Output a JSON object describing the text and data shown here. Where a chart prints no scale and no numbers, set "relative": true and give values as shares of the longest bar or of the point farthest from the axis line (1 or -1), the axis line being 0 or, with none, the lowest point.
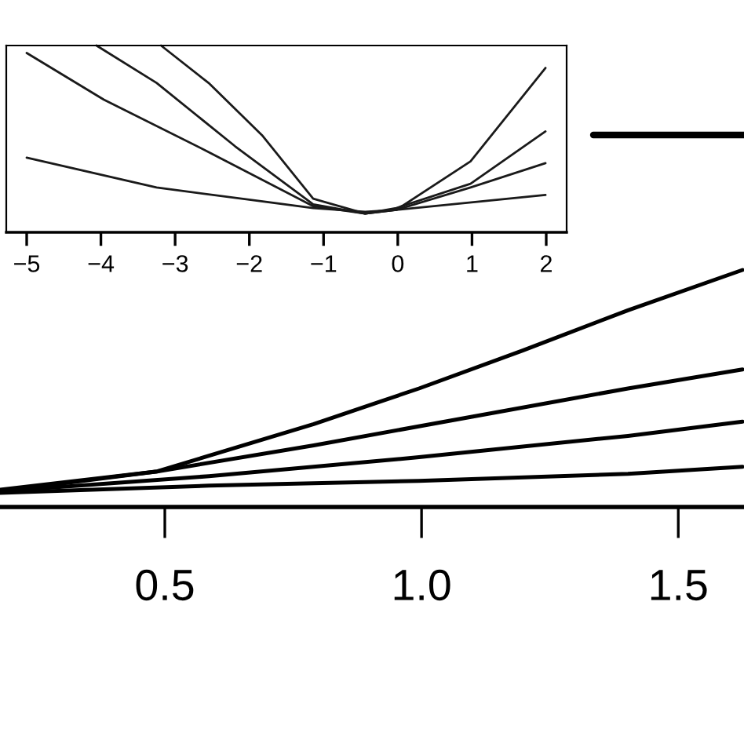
{
  "chart_data": [
    {
      "type": "line",
      "relative": true,
      "xlim": [
        -5.275,
        2.275
      ],
      "xticks": [
        {
          "value": -5,
          "label": "−5"
        },
        {
          "value": -4,
          "label": "−4"
        },
        {
          "value": -3,
          "label": "−3"
        },
        {
          "value": -2,
          "label": "−2"
        },
        {
          "value": -1,
          "label": "−1"
        },
        0,
        1,
        2
      ],
      "tick_labels": "x",
      "series": [
        {
          "color": "#1a1a1a",
          "x": [
            -5,
            -3.25,
            -1.14,
            -0.44,
            -0.02,
            1.99
          ],
          "values": [
            0.4,
            0.24,
            0.13,
            0.11,
            0.12,
            0.2
          ]
        },
        {
          "color": "#1a1a1a",
          "x": [
            -5,
            -3.96,
            -2.55,
            -1.14,
            -0.44,
            -0.02,
            0.98,
            1.99
          ],
          "values": [
            0.96,
            0.71,
            0.43,
            0.14,
            0.1,
            0.12,
            0.24,
            0.37
          ]
        },
        {
          "color": "#1a1a1a",
          "x": [
            -4.06,
            -3.25,
            -2.19,
            -1.14,
            -0.44,
            -0.02,
            0.98,
            1.99
          ],
          "values": [
            1.0,
            0.8,
            0.46,
            0.15,
            0.1,
            0.13,
            0.26,
            0.54
          ]
        },
        {
          "color": "#1a1a1a",
          "x": [
            -3.19,
            -2.55,
            -1.83,
            -1.14,
            -0.44,
            -0.02,
            0.98,
            1.99
          ],
          "values": [
            1.0,
            0.8,
            0.52,
            0.18,
            0.1,
            0.12,
            0.38,
            0.88
          ]
        }
      ]
    },
    {
      "type": "line",
      "relative": true,
      "xlim": [
        0.179,
        1.628
      ],
      "xticks": [
        0.5,
        {
          "value": 1.0,
          "label": "1.0"
        },
        1.5
      ],
      "tick_labels": "x",
      "series": [
        {
          "color": "#000000",
          "x": [
            0.179,
            0.485,
            0.79,
            0.995,
            1.197,
            1.402,
            1.625
          ],
          "values": [
            0.066,
            0.15,
            0.35,
            0.5,
            0.66,
            0.83,
            1.0
          ]
        },
        {
          "color": "#000000",
          "x": [
            0.179,
            0.485,
            0.79,
            1.096,
            1.402,
            1.625
          ],
          "values": [
            0.073,
            0.15,
            0.26,
            0.38,
            0.5,
            0.58
          ]
        },
        {
          "color": "#000000",
          "x": [
            0.179,
            0.586,
            0.995,
            1.402,
            1.625
          ],
          "values": [
            0.066,
            0.13,
            0.21,
            0.3,
            0.36
          ]
        },
        {
          "color": "#000000",
          "x": [
            0.179,
            0.586,
            0.995,
            1.402,
            1.625
          ],
          "values": [
            0.06,
            0.09,
            0.11,
            0.14,
            0.17
          ]
        }
      ]
    }
  ]
}
